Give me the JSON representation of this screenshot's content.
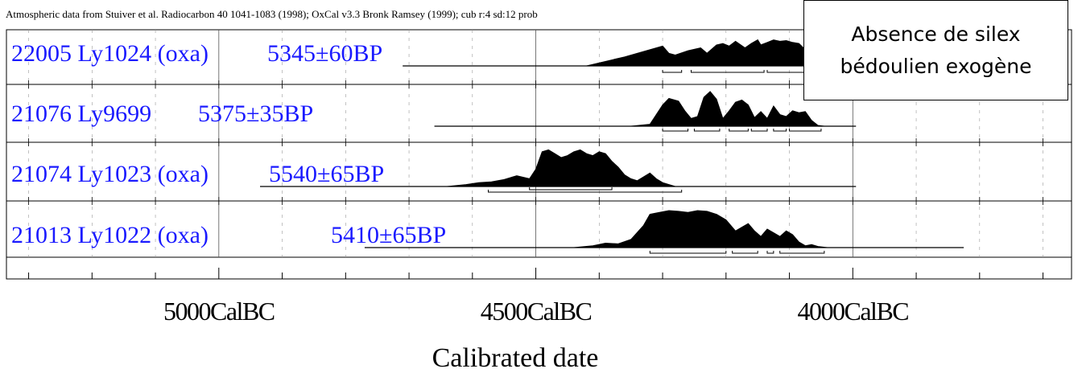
{
  "chart_data": {
    "type": "area",
    "header": "Atmospheric data from Stuiver et al. Radiocarbon 40 1041-1083 (1998);  OxCal v3.3 Bronk Ramsey (1999); cub r:4 sd:12 prob",
    "xlabel": "Calibrated date",
    "tick_labels": [
      "5000CalBC",
      "4500CalBC",
      "4000CalBC"
    ],
    "tick_values": [
      5000,
      4500,
      4000
    ],
    "x_range_calBC": [
      5335,
      3655
    ],
    "grid": true,
    "series": [
      {
        "label": [
          "22005 Ly1024 (oxa)",
          "5345±60BP"
        ],
        "line_range": [
          4710,
          3985
        ],
        "bins": [
          4500,
          4420,
          4360,
          4300,
          4290,
          4280,
          4260,
          4240,
          4230,
          4215,
          4205,
          4195,
          4185,
          4170,
          4160,
          4150,
          4145,
          4135,
          4125,
          4115,
          4105,
          4095,
          4085,
          4075,
          4065,
          4055,
          4045,
          4030,
          4015,
          4005
        ],
        "density": [
          0,
          0,
          0.25,
          0.55,
          0.35,
          0.3,
          0.42,
          0.5,
          0.35,
          0.58,
          0.62,
          0.55,
          0.68,
          0.5,
          0.62,
          0.72,
          0.58,
          0.65,
          0.72,
          0.68,
          0.7,
          0.65,
          0.62,
          0.45,
          0.2,
          0.15,
          0.28,
          0.15,
          0.05,
          0
        ],
        "ranges": [
          [
            4300,
            4270
          ],
          [
            4255,
            4140
          ],
          [
            4135,
            4045
          ],
          [
            4040,
            4020
          ]
        ]
      },
      {
        "label": [
          "21076 Ly9699",
          "5375±35BP"
        ],
        "line_range": [
          4660,
          3995
        ],
        "bins": [
          4350,
          4320,
          4300,
          4290,
          4275,
          4265,
          4255,
          4245,
          4235,
          4225,
          4215,
          4205,
          4195,
          4185,
          4175,
          4165,
          4155,
          4145,
          4135,
          4125,
          4115,
          4105,
          4095,
          4085,
          4075,
          4065,
          4055,
          4045,
          4035,
          4025
        ],
        "density": [
          0,
          0.05,
          0.55,
          0.72,
          0.65,
          0.4,
          0.2,
          0.25,
          0.75,
          0.9,
          0.7,
          0.2,
          0.4,
          0.62,
          0.68,
          0.55,
          0.22,
          0.38,
          0.2,
          0.52,
          0.3,
          0.25,
          0.4,
          0.35,
          0.38,
          0.15,
          0.02,
          0,
          0,
          0
        ],
        "ranges": [
          [
            4300,
            4260
          ],
          [
            4250,
            4210
          ],
          [
            4195,
            4165
          ],
          [
            4160,
            4135
          ],
          [
            4125,
            4105
          ],
          [
            4100,
            4050
          ]
        ]
      },
      {
        "label": [
          "21074 Ly1023 (oxa)",
          "5540±65BP"
        ],
        "line_range": [
          4935,
          3995
        ],
        "bins": [
          4640,
          4610,
          4590,
          4570,
          4550,
          4530,
          4510,
          4500,
          4490,
          4480,
          4470,
          4460,
          4450,
          4440,
          4430,
          4420,
          4410,
          4400,
          4390,
          4380,
          4370,
          4360,
          4350,
          4340,
          4330,
          4320,
          4310,
          4300,
          4290,
          4280
        ],
        "density": [
          0,
          0.05,
          0.1,
          0.12,
          0.18,
          0.28,
          0.2,
          0.45,
          0.9,
          0.95,
          0.85,
          0.75,
          0.8,
          0.9,
          0.95,
          0.85,
          0.8,
          0.9,
          0.85,
          0.65,
          0.5,
          0.3,
          0.2,
          0.15,
          0.25,
          0.35,
          0.2,
          0.1,
          0.05,
          0
        ],
        "ranges": [
          [
            4575,
            4270
          ],
          [
            4510,
            4380
          ]
        ]
      },
      {
        "label": [
          "21013 Ly1022 (oxa)",
          "5410±65BP"
        ],
        "line_range": [
          4770,
          3825
        ],
        "bins": [
          4440,
          4410,
          4390,
          4370,
          4350,
          4330,
          4320,
          4305,
          4290,
          4275,
          4260,
          4245,
          4230,
          4215,
          4200,
          4185,
          4175,
          4165,
          4155,
          4145,
          4135,
          4125,
          4115,
          4105,
          4095,
          4085,
          4075,
          4065,
          4055,
          4040
        ],
        "density": [
          0,
          0.05,
          0.12,
          0.1,
          0.22,
          0.6,
          0.9,
          0.95,
          1.0,
          0.98,
          0.95,
          1.0,
          0.98,
          0.9,
          0.75,
          0.45,
          0.55,
          0.65,
          0.45,
          0.3,
          0.5,
          0.4,
          0.3,
          0.45,
          0.35,
          0.15,
          0.05,
          0.08,
          0.03,
          0
        ],
        "ranges": [
          [
            4320,
            4200
          ],
          [
            4190,
            4150
          ],
          [
            4135,
            4125
          ],
          [
            4115,
            4045
          ]
        ]
      }
    ]
  },
  "note": {
    "line1": "Absence de silex",
    "line2": "bédoulien exogène"
  }
}
